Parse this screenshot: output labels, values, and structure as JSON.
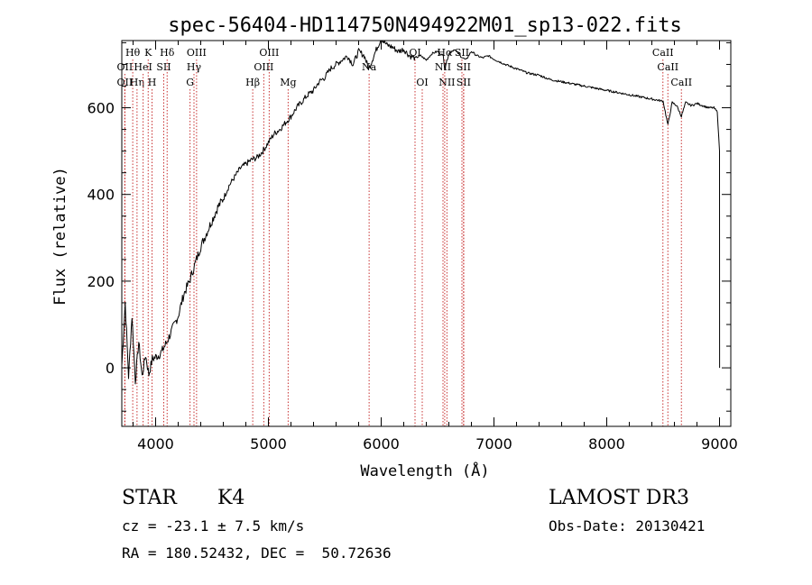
{
  "chart_data": {
    "type": "line",
    "title": "spec-56404-HD114750N494922M01_sp13-022.fits",
    "xlabel": "Wavelength (Å)",
    "ylabel": "Flux (relative)",
    "xlim": [
      3700,
      9100
    ],
    "ylim": [
      -135,
      755
    ],
    "x_ticks": [
      4000,
      5000,
      6000,
      7000,
      8000,
      9000
    ],
    "x_tick_labels": [
      "4000",
      "5000",
      "6000",
      "7000",
      "8000",
      "9000"
    ],
    "y_ticks": [
      0,
      200,
      400,
      600
    ],
    "y_tick_labels": [
      "0",
      "200",
      "400",
      "600"
    ],
    "x_minor_step": 200,
    "y_minor_step": 50,
    "grid": false,
    "series": [
      {
        "name": "flux",
        "x": [
          3700,
          3730,
          3760,
          3790,
          3820,
          3850,
          3880,
          3910,
          3940,
          3970,
          4000,
          4030,
          4060,
          4100,
          4150,
          4200,
          4250,
          4300,
          4350,
          4400,
          4450,
          4500,
          4550,
          4600,
          4650,
          4700,
          4750,
          4800,
          4850,
          4900,
          4950,
          5000,
          5050,
          5100,
          5150,
          5200,
          5250,
          5300,
          5350,
          5400,
          5450,
          5500,
          5550,
          5600,
          5650,
          5700,
          5750,
          5800,
          5850,
          5890,
          5950,
          6000,
          6050,
          6100,
          6150,
          6200,
          6250,
          6300,
          6350,
          6400,
          6450,
          6500,
          6550,
          6563,
          6600,
          6650,
          6700,
          6750,
          6800,
          6850,
          6900,
          6950,
          7000,
          7100,
          7200,
          7300,
          7400,
          7500,
          7600,
          7700,
          7800,
          7900,
          8000,
          8100,
          8200,
          8300,
          8400,
          8500,
          8542,
          8580,
          8620,
          8662,
          8700,
          8750,
          8800,
          8850,
          8900,
          8950,
          8980,
          9000,
          9001
        ],
        "y": [
          5,
          150,
          -20,
          120,
          -30,
          60,
          -20,
          30,
          -15,
          20,
          25,
          30,
          40,
          60,
          90,
          120,
          170,
          200,
          240,
          280,
          310,
          340,
          370,
          390,
          420,
          440,
          460,
          470,
          480,
          485,
          500,
          520,
          540,
          550,
          565,
          580,
          600,
          615,
          630,
          640,
          660,
          670,
          690,
          700,
          710,
          720,
          700,
          730,
          720,
          690,
          730,
          760,
          745,
          740,
          730,
          735,
          720,
          715,
          720,
          710,
          725,
          730,
          720,
          690,
          725,
          735,
          720,
          710,
          730,
          720,
          715,
          720,
          712,
          700,
          690,
          680,
          675,
          665,
          660,
          655,
          650,
          645,
          640,
          635,
          630,
          625,
          620,
          615,
          560,
          612,
          605,
          580,
          612,
          605,
          610,
          605,
          600,
          600,
          590,
          500,
          0
        ],
        "line_color": "#000000"
      }
    ],
    "spectral_lines": [
      {
        "label": "Hθ",
        "x": 3797,
        "row": 1
      },
      {
        "label": "OII",
        "x": 3727,
        "row": 2
      },
      {
        "label": "OII",
        "x": 3727,
        "row": 3
      },
      {
        "label": "Hη",
        "x": 3835,
        "row": 3
      },
      {
        "label": "HeI",
        "x": 3889,
        "row": 2
      },
      {
        "label": "K",
        "x": 3934,
        "row": 1
      },
      {
        "label": "H",
        "x": 3968,
        "row": 3
      },
      {
        "label": "SII",
        "x": 4072,
        "row": 2
      },
      {
        "label": "Hδ",
        "x": 4102,
        "row": 1
      },
      {
        "label": "OIII",
        "x": 4363,
        "row": 1
      },
      {
        "label": "Hγ",
        "x": 4340,
        "row": 2
      },
      {
        "label": "G",
        "x": 4305,
        "row": 3
      },
      {
        "label": "Hβ",
        "x": 4861,
        "row": 3
      },
      {
        "label": "OIII",
        "x": 5007,
        "row": 1
      },
      {
        "label": "OIII",
        "x": 4959,
        "row": 2
      },
      {
        "label": "Mg",
        "x": 5175,
        "row": 3
      },
      {
        "label": "Na",
        "x": 5893,
        "row": 2
      },
      {
        "label": "OI",
        "x": 6300,
        "row": 1
      },
      {
        "label": "OI",
        "x": 6364,
        "row": 3
      },
      {
        "label": "NII",
        "x": 6548,
        "row": 2
      },
      {
        "label": "NII",
        "x": 6583,
        "row": 3
      },
      {
        "label": "Hα",
        "x": 6563,
        "row": 1
      },
      {
        "label": "SII",
        "x": 6716,
        "row": 1
      },
      {
        "label": "SII",
        "x": 6731,
        "row": 2
      },
      {
        "label": "SII",
        "x": 6731,
        "row": 3
      },
      {
        "label": "CaII",
        "x": 8498,
        "row": 1
      },
      {
        "label": "CaII",
        "x": 8542,
        "row": 2
      },
      {
        "label": "CaII",
        "x": 8662,
        "row": 3
      }
    ],
    "line_marker_color": "#c83232"
  },
  "info": {
    "object_class": "STAR",
    "subclass": "K4",
    "cz": "cz = -23.1 ± 7.5 km/s",
    "coords": "RA = 180.52432, DEC =  50.72636",
    "survey": "LAMOST DR3",
    "obs_date": "Obs-Date: 20130421"
  }
}
